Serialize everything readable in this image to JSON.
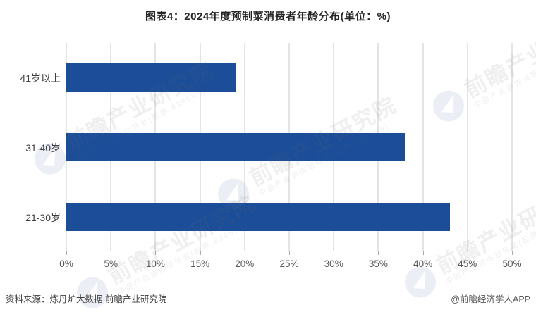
{
  "chart_data": {
    "type": "bar",
    "orientation": "horizontal",
    "title": "图表4：2024年度预制菜消费者年龄分布(单位：%)",
    "categories": [
      "41岁以上",
      "31-40岁",
      "21-30岁"
    ],
    "values": [
      19,
      38,
      43
    ],
    "unit": "%",
    "xlabel": "",
    "ylabel": "",
    "xlim": [
      0,
      50
    ],
    "x_tick_step": 5,
    "x_tick_labels": [
      "0%",
      "5%",
      "10%",
      "15%",
      "20%",
      "25%",
      "30%",
      "35%",
      "40%",
      "45%",
      "50%"
    ],
    "bar_color": "#1B4D99",
    "grid": true,
    "legend_position": "none"
  },
  "footer": {
    "source": "资料来源：炼丹炉大数据 前瞻产业研究院",
    "credit": "@前瞻经济学人APP"
  },
  "watermark": {
    "text": "前瞻产业研究院",
    "subtext": "中国产业咨询领导者(股票:839599)",
    "logo": "qianzhan-bird-logo"
  }
}
